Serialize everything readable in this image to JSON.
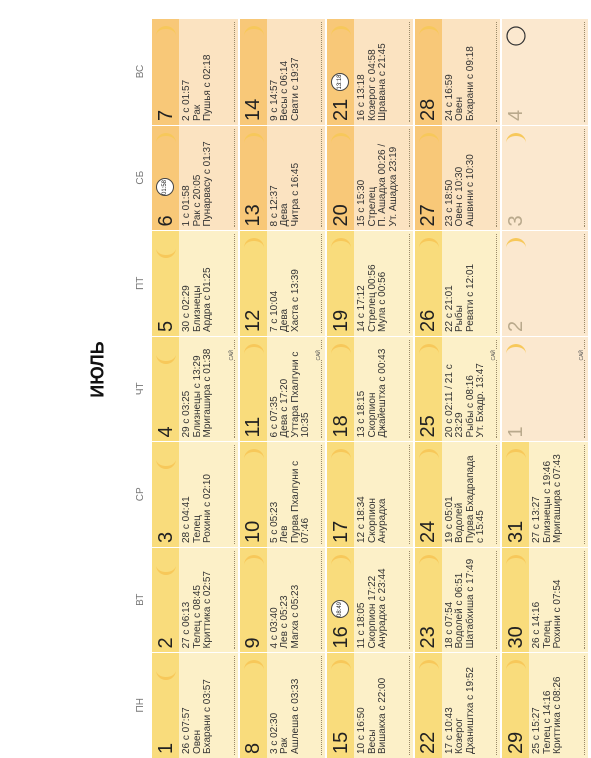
{
  "title": "ИЮЛЬ",
  "weekdays": [
    "ПН",
    "ВТ",
    "СР",
    "ЧТ",
    "ПТ",
    "СБ",
    "ВС"
  ],
  "colors": {
    "weekday_band": "#f9dc7c",
    "weekday_body": "#fcf0c8",
    "weekend_band": "#f8c878",
    "weekend_body": "#fbe3c1",
    "moon": "#f7c85a",
    "empty": "#fbe8cf"
  },
  "weeks": [
    [
      {
        "day": "1",
        "lines": [
          "26 с 07:57",
          "Овен",
          "Бхарани с 03:57"
        ],
        "moon": "waxing"
      },
      {
        "day": "2",
        "lines": [
          "27 с 06:13",
          "Телец с 08:45",
          "Криттика с 02:57"
        ],
        "moon": "waxing"
      },
      {
        "day": "3",
        "lines": [
          "28 с 04:41",
          "Телец",
          "Рохини с 02:10"
        ],
        "moon": "waxing"
      },
      {
        "day": "4",
        "lines": [
          "29 с 03:25",
          "Близнецы с 13:29",
          "Мригашира с 01:38"
        ],
        "moon": "waxing",
        "mark": "САЙ"
      },
      {
        "day": "5",
        "lines": [
          "30 с 02:29",
          "Близнецы",
          "Ардра с 01:25"
        ],
        "moon": "waxing"
      },
      {
        "day": "6",
        "lines": [
          "1 с 01:58",
          "Рак с 20:05",
          "Пунарвасу с 01:37"
        ],
        "moon": "waning",
        "badge": "01:58"
      },
      {
        "day": "7",
        "lines": [
          "2 с 01:57",
          "Рак",
          "Пушья с 02:18"
        ],
        "moon": "waning"
      }
    ],
    [
      {
        "day": "8",
        "lines": [
          "3 с 02:30",
          "Рак",
          "Ашлеша с 03:33"
        ],
        "moon": "waning"
      },
      {
        "day": "9",
        "lines": [
          "4 с 03:40",
          "Лев с 05:23",
          "Магха с 05:23"
        ],
        "moon": "waning"
      },
      {
        "day": "10",
        "lines": [
          "5 с 05:23",
          "Лев",
          "Пурва Пхалгуни с",
          "07:46"
        ],
        "moon": "waning"
      },
      {
        "day": "11",
        "lines": [
          "6 с 07:35",
          "Дева с 17:20",
          "Уттара Пхалгуни с",
          "10:35"
        ],
        "moon": "waning",
        "mark": "САЙ"
      },
      {
        "day": "12",
        "lines": [
          "7 с 10:04",
          "Дева",
          "Хаста с 13:39"
        ],
        "moon": "waning"
      },
      {
        "day": "13",
        "lines": [
          "8 с 12:37",
          "Дева",
          "Читра с 16:45"
        ],
        "moon": "waning"
      },
      {
        "day": "14",
        "lines": [
          "9 с 14:57",
          "Весы с 06:14",
          "Свати с 19:37"
        ],
        "moon": "waning"
      }
    ],
    [
      {
        "day": "15",
        "lines": [
          "10 с 16:50",
          "Весы",
          "Вишакха с 22:00"
        ],
        "moon": "waning"
      },
      {
        "day": "16",
        "lines": [
          "11 с 18:05",
          "Скорпион 17:22",
          "Анурадха с 23:44"
        ],
        "moon": "waning",
        "badge": "08:49"
      },
      {
        "day": "17",
        "lines": [
          "12 с 18:34",
          "Скорпион",
          "Анурадха"
        ],
        "moon": "waning"
      },
      {
        "day": "18",
        "lines": [
          "13 с 18:15",
          "Скорпион",
          "Джайештха с 00:43"
        ],
        "moon": "waning"
      },
      {
        "day": "19",
        "lines": [
          "14 с 17:12",
          "Стрелец 00:56",
          "Мула с 00:56"
        ],
        "moon": "waning"
      },
      {
        "day": "20",
        "lines": [
          "15 с 15:30",
          "Стрелец",
          "П. Ашадха 00:26 /",
          "Ут. Ашадха 23:19"
        ],
        "moon": "waning"
      },
      {
        "day": "21",
        "lines": [
          "16 с 13:18",
          "Козерог с 04:58",
          "Шравана с 21:45"
        ],
        "moon": "waning",
        "badge": "13:18"
      }
    ],
    [
      {
        "day": "22",
        "lines": [
          "17 с 10:43",
          "Козерог",
          "Дхаништха с 19:52"
        ],
        "moon": "waning"
      },
      {
        "day": "23",
        "lines": [
          "18 с 07:54",
          "Водолей с 06:51",
          "Шатабхиша с 17:49"
        ],
        "moon": "waning"
      },
      {
        "day": "24",
        "lines": [
          "19 с 05:01",
          "Водолей",
          "Пурва Бхадрапада",
          "с 15:45"
        ],
        "moon": "waning"
      },
      {
        "day": "25",
        "lines": [
          "20 с 02:11 / 21 с",
          "23:29",
          "Рыбы с 08:16",
          "Ут. Бхадр. 13:47"
        ],
        "moon": "waning",
        "mark": "САЙ"
      },
      {
        "day": "26",
        "lines": [
          "22 с 21:01",
          "Рыбы",
          "Ревати с 12:01"
        ],
        "moon": "waning"
      },
      {
        "day": "27",
        "lines": [
          "23 с 18:50",
          "Овен с 10:30",
          "Ашвини с 10:30"
        ],
        "moon": "waning"
      },
      {
        "day": "28",
        "lines": [
          "24 с 16:59",
          "Овен",
          "Бхарани с 09:18"
        ],
        "moon": "waning"
      }
    ],
    [
      {
        "day": "29",
        "lines": [
          "25 с 15:27",
          "Телец с 14:16",
          "Криттика с 08:26"
        ],
        "moon": "waning"
      },
      {
        "day": "30",
        "lines": [
          "26 с 14:16",
          "Телец",
          "Рохини с 07:54"
        ],
        "moon": "waning"
      },
      {
        "day": "31",
        "lines": [
          "27 с 13:27",
          "Близнецы с 19:46",
          "Мригашира с 07:43"
        ],
        "moon": "waning"
      },
      {
        "day": "1",
        "lines": [],
        "moon": "waning",
        "faded": true,
        "mark": "САЙ"
      },
      {
        "day": "2",
        "lines": [],
        "moon": "waning",
        "faded": true
      },
      {
        "day": "3",
        "lines": [],
        "moon": "waning",
        "faded": true
      },
      {
        "day": "4",
        "lines": [],
        "moon": "new",
        "faded": true
      }
    ]
  ]
}
